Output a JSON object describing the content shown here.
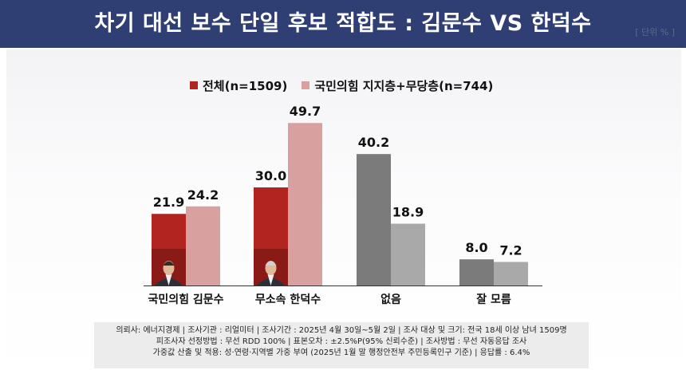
{
  "header": {
    "title": "차기 대선 보수 단일 후보 적합도 : 김문수 VS 한덕수",
    "unit": "[ 단위 % ]"
  },
  "legend": {
    "items": [
      {
        "label": "전체(n=1509)",
        "color": "#b2241f"
      },
      {
        "label": "국민의힘 지지층+무당층(n=744)",
        "color": "#d9a0a0"
      }
    ]
  },
  "chart_data": {
    "type": "bar",
    "categories": [
      "국민의힘 김문수",
      "무소속 한덕수",
      "없음",
      "잘 모름"
    ],
    "series": [
      {
        "name": "전체(n=1509)",
        "values": [
          21.9,
          30.0,
          40.2,
          8.0
        ],
        "colors": [
          "#b2241f",
          "#b2241f",
          "#7b7b7b",
          "#7b7b7b"
        ]
      },
      {
        "name": "국민의힘 지지층+무당층(n=744)",
        "values": [
          24.2,
          49.7,
          18.9,
          7.2
        ],
        "colors": [
          "#d9a0a0",
          "#d9a0a0",
          "#a9a9a9",
          "#a9a9a9"
        ]
      }
    ],
    "ylim": [
      0,
      55
    ],
    "data_labels": [
      [
        "21.9",
        "24.2"
      ],
      [
        "30.0",
        "49.7"
      ],
      [
        "40.2",
        "18.9"
      ],
      [
        "8.0",
        "7.2"
      ]
    ],
    "grid": false,
    "legend_position": "top-left"
  },
  "footer": {
    "lines": [
      "의뢰사: 에너지경제 | 조사기관 : 리얼미터 | 조사기간 : 2025년 4월 30일~5월 2일 | 조사 대상 및 크기: 전국 18세 이상 남녀 1509명",
      "피조사자 선정방법 : 무선 RDD 100% | 표본오차 : ±2.5%P(95% 신뢰수준) | 조사방법 : 무선 자동응답 조사",
      "가중값 산출 및 적용: 성·연령·지역별 가중 부여 (2025년 1월 말 행정안전부 주민등록인구 기준) | 응답률 : 6.4%"
    ]
  },
  "colors": {
    "header_bg": "#2f3f73",
    "red": "#b2241f",
    "pink": "#d9a0a0",
    "dark_gray": "#7b7b7b",
    "light_gray": "#a9a9a9"
  }
}
